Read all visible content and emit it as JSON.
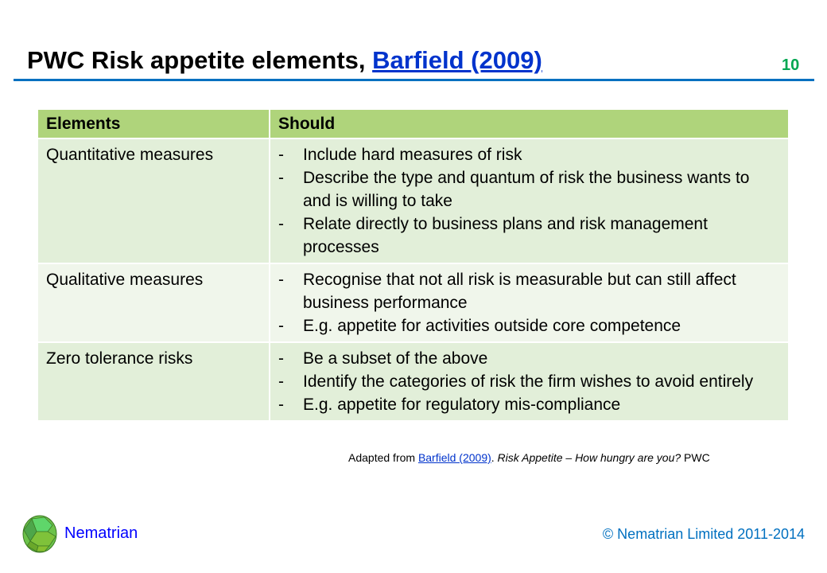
{
  "slide": {
    "title_prefix": "PWC Risk appetite elements, ",
    "title_link": "Barfield (2009)",
    "page_number": "10"
  },
  "table": {
    "headers": [
      "Elements",
      "Should"
    ],
    "rows": [
      {
        "element": "Quantitative measures",
        "items": [
          "Include hard measures of risk",
          "Describe the type and quantum of risk the business wants to and is willing to take",
          "Relate directly to business plans and risk management processes"
        ]
      },
      {
        "element": "Qualitative measures",
        "items": [
          "Recognise that not all risk is measurable but can still affect business performance",
          "E.g. appetite for activities outside core competence"
        ]
      },
      {
        "element": "Zero tolerance risks",
        "items": [
          "Be a subset of the above",
          "Identify the categories of risk the firm wishes to avoid entirely",
          "E.g. appetite for regulatory mis-compliance"
        ]
      }
    ]
  },
  "source": {
    "prefix": "Adapted from ",
    "link": "Barfield (2009)",
    "sep": ". ",
    "title": "Risk Appetite – How hungry are you?",
    "suffix": " PWC"
  },
  "footer": {
    "brand": "Nematrian",
    "copyright": "© Nematrian Limited 2011-2014"
  },
  "colors": {
    "header_bg": "#afd47b",
    "row_dark": "#e2efd9",
    "row_light": "#f0f6eb",
    "rule": "#0070c0",
    "link": "#0033cc",
    "page_number": "#00a651"
  }
}
